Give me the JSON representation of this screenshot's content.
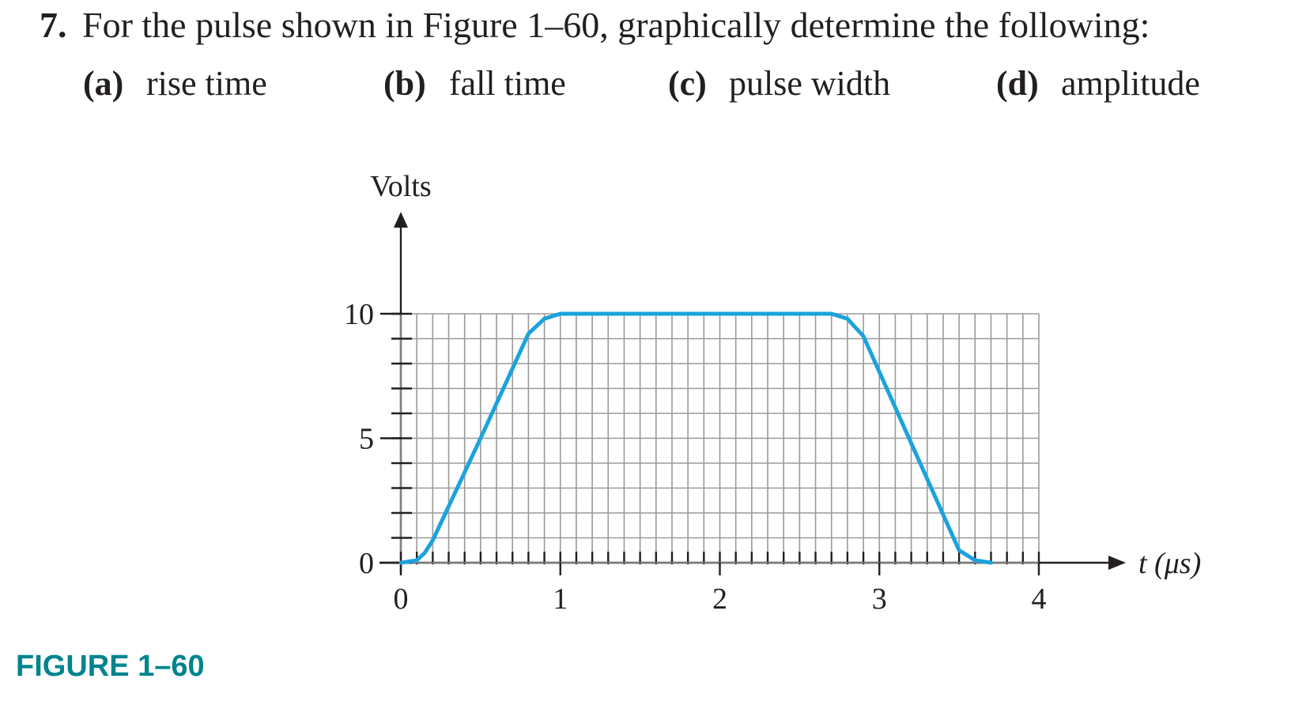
{
  "question": {
    "number": "7.",
    "text": "For the pulse shown in Figure 1–60, graphically determine the following:",
    "parts": [
      {
        "label": "(a)",
        "text": "rise time"
      },
      {
        "label": "(b)",
        "text": "fall time"
      },
      {
        "label": "(c)",
        "text": "pulse width"
      },
      {
        "label": "(d)",
        "text": "amplitude"
      }
    ]
  },
  "chart_data": {
    "type": "line",
    "ylabel": "Volts",
    "xlabel": "t (μs)",
    "x": [
      0,
      0.1,
      0.15,
      0.2,
      0.5,
      0.8,
      0.9,
      1.0,
      2.7,
      2.8,
      2.9,
      3.2,
      3.5,
      3.6,
      3.7
    ],
    "values": [
      0,
      0.1,
      0.4,
      0.9,
      5.0,
      9.2,
      9.8,
      10,
      10,
      9.8,
      9.1,
      4.8,
      0.5,
      0.1,
      0
    ],
    "color": "#1ca2dc",
    "xlim": [
      0,
      4
    ],
    "ylim": [
      0,
      10
    ],
    "xticks": [
      0,
      1,
      2,
      3,
      4
    ],
    "yticks": [
      0,
      5,
      10
    ],
    "grid": true
  },
  "caption": "FIGURE 1–60"
}
